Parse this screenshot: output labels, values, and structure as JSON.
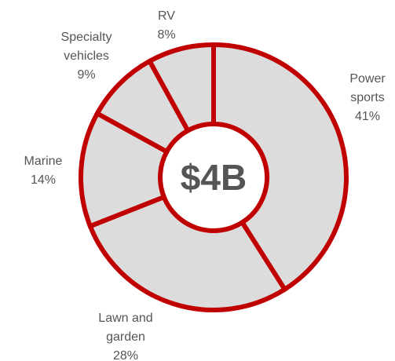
{
  "chart_data": {
    "type": "donut",
    "center_text": "$4B",
    "categories": [
      "Power sports",
      "Lawn and garden",
      "Marine",
      "Specialty vehicles",
      "RV"
    ],
    "values": [
      41,
      28,
      14,
      9,
      8
    ],
    "value_labels": [
      "41%",
      "28%",
      "14%",
      "9%",
      "8%"
    ],
    "color": "#dcdcdc",
    "edge_color": "#c00000"
  }
}
